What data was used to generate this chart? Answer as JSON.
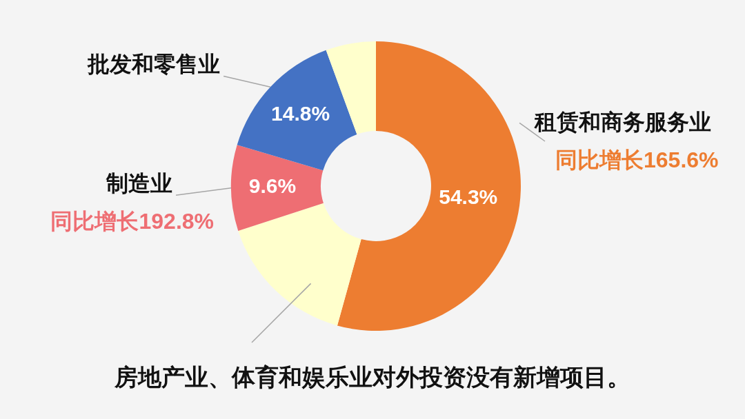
{
  "chart_data": {
    "type": "donut",
    "categories": [
      "租赁和商务服务业",
      null,
      "制造业",
      "批发和零售业",
      null
    ],
    "values": [
      54.3,
      15.7,
      9.6,
      14.8,
      5.6
    ],
    "colors": [
      "#ed7d31",
      "#ffffcc",
      "#ee6e73",
      "#4472c4",
      "#ffffcc"
    ],
    "value_labels": [
      "54.3%",
      null,
      "9.6%",
      "14.8%",
      null
    ],
    "annotations": [
      {
        "text": "同比增长165.6%",
        "x": "租赁和商务服务业"
      },
      {
        "text": "同比增长192.8%",
        "x": "制造业"
      },
      "房地产业、体育和娱乐业对外投资没有新增项目。"
    ]
  }
}
